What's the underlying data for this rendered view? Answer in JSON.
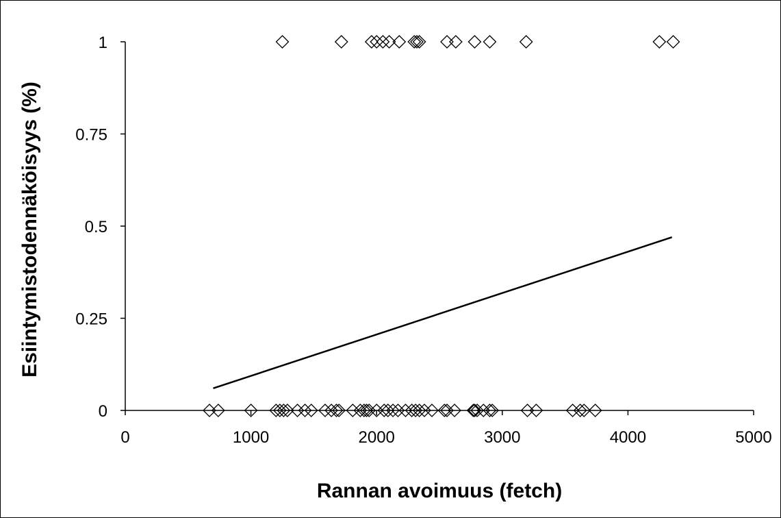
{
  "chart_data": {
    "type": "scatter",
    "title": "",
    "xlabel": "Rannan avoimuus (fetch)",
    "ylabel": "Esiintymistodennäköisyys (%)",
    "xlim": [
      0,
      5000
    ],
    "ylim": [
      0,
      1
    ],
    "x_ticks": [
      "0",
      "1000",
      "2000",
      "3000",
      "4000",
      "5000"
    ],
    "y_ticks": [
      "0",
      "0.25",
      "0.5",
      "0.75",
      "1"
    ],
    "grid": false,
    "legend": "none",
    "series": [
      {
        "marker": "diamond-open",
        "color": "#000000",
        "points": [
          [
            1250,
            1
          ],
          [
            1720,
            1
          ],
          [
            1960,
            1
          ],
          [
            2000,
            1
          ],
          [
            2050,
            1
          ],
          [
            2100,
            1
          ],
          [
            2180,
            1
          ],
          [
            2300,
            1
          ],
          [
            2320,
            1
          ],
          [
            2340,
            1
          ],
          [
            2560,
            1
          ],
          [
            2630,
            1
          ],
          [
            2780,
            1
          ],
          [
            2900,
            1
          ],
          [
            3190,
            1
          ],
          [
            4250,
            1
          ],
          [
            4360,
            1
          ],
          [
            670,
            0
          ],
          [
            740,
            0
          ],
          [
            1000,
            0
          ],
          [
            1200,
            0
          ],
          [
            1230,
            0
          ],
          [
            1260,
            0
          ],
          [
            1290,
            0
          ],
          [
            1370,
            0
          ],
          [
            1430,
            0
          ],
          [
            1480,
            0
          ],
          [
            1590,
            0
          ],
          [
            1640,
            0
          ],
          [
            1680,
            0
          ],
          [
            1700,
            0
          ],
          [
            1810,
            0
          ],
          [
            1870,
            0
          ],
          [
            1900,
            0
          ],
          [
            1920,
            0
          ],
          [
            1940,
            0
          ],
          [
            2000,
            0
          ],
          [
            2060,
            0
          ],
          [
            2090,
            0
          ],
          [
            2130,
            0
          ],
          [
            2170,
            0
          ],
          [
            2230,
            0
          ],
          [
            2280,
            0
          ],
          [
            2310,
            0
          ],
          [
            2340,
            0
          ],
          [
            2380,
            0
          ],
          [
            2440,
            0
          ],
          [
            2540,
            0
          ],
          [
            2560,
            0
          ],
          [
            2620,
            0
          ],
          [
            2770,
            0
          ],
          [
            2780,
            0
          ],
          [
            2800,
            0
          ],
          [
            2850,
            0
          ],
          [
            2900,
            0
          ],
          [
            2920,
            0
          ],
          [
            3200,
            0
          ],
          [
            3270,
            0
          ],
          [
            3560,
            0
          ],
          [
            3620,
            0
          ],
          [
            3650,
            0
          ],
          [
            3740,
            0
          ]
        ]
      },
      {
        "style": "line",
        "color": "#000000",
        "points": [
          [
            700,
            0.06
          ],
          [
            4350,
            0.47
          ]
        ]
      }
    ]
  }
}
